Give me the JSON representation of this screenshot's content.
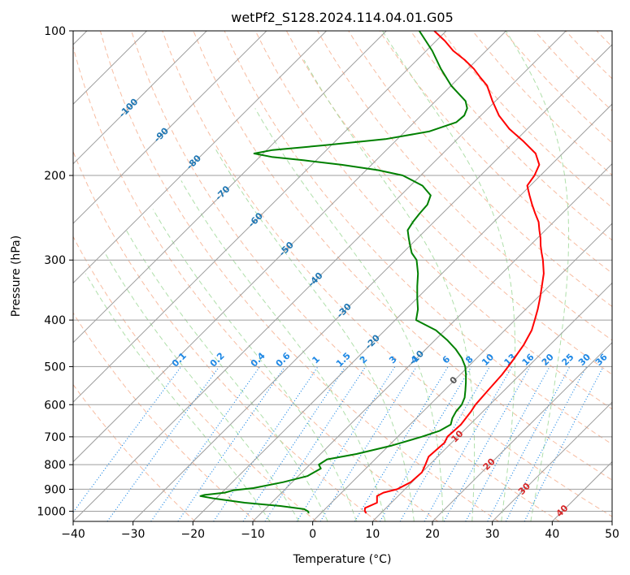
{
  "chart_data": {
    "type": "line",
    "title": "wetPf2_S128.2024.114.04.01.G05",
    "xlabel": "Temperature (°C)",
    "ylabel": "Pressure (hPa)",
    "xlim": [
      -40,
      50
    ],
    "ylim": [
      1050,
      100
    ],
    "yscale": "log",
    "skew": "skew-T",
    "grid": true,
    "xticks": [
      -40,
      -30,
      -20,
      -10,
      0,
      10,
      20,
      30,
      40,
      50
    ],
    "yticks": [
      100,
      200,
      300,
      400,
      500,
      600,
      700,
      800,
      900,
      1000
    ],
    "colors": {
      "temperature": "#ff0000",
      "dewpoint": "#008000",
      "isotherm": "#9e9e9e",
      "dry_adiabat": "#f4a582",
      "moist_adiabat": "#a1d99b",
      "mixing_ratio": "#1e88e5",
      "blue_label": "#1f77b4",
      "red_label": "#d62728"
    },
    "isotherm_labels": [
      "-100",
      "-90",
      "-80",
      "-70",
      "-60",
      "-50",
      "-40",
      "-30",
      "-20",
      "-10",
      "0",
      "10",
      "20",
      "30",
      "40"
    ],
    "mixing_ratio_labels": [
      "0.1",
      "0.2",
      "0.4",
      "0.6",
      "1",
      "1.5",
      "2",
      "3",
      "4",
      "6",
      "8",
      "10",
      "13",
      "16",
      "20",
      "25",
      "30",
      "36"
    ],
    "series": [
      {
        "key": "temperature",
        "points": [
          [
            1010,
            7.6
          ],
          [
            1000,
            7.0
          ],
          [
            985,
            6.5
          ],
          [
            960,
            7.6
          ],
          [
            930,
            6.5
          ],
          [
            915,
            7.0
          ],
          [
            900,
            8.7
          ],
          [
            870,
            9.8
          ],
          [
            830,
            10.0
          ],
          [
            800,
            9.3
          ],
          [
            770,
            8.5
          ],
          [
            720,
            8.8
          ],
          [
            700,
            8.3
          ],
          [
            660,
            8.5
          ],
          [
            620,
            8.0
          ],
          [
            600,
            7.6
          ],
          [
            560,
            7.3
          ],
          [
            520,
            7.0
          ],
          [
            490,
            6.5
          ],
          [
            450,
            5.6
          ],
          [
            420,
            4.5
          ],
          [
            400,
            3.3
          ],
          [
            380,
            2.0
          ],
          [
            360,
            0.5
          ],
          [
            340,
            -1.2
          ],
          [
            320,
            -3.0
          ],
          [
            300,
            -5.4
          ],
          [
            290,
            -6.8
          ],
          [
            280,
            -8.2
          ],
          [
            270,
            -9.5
          ],
          [
            260,
            -11.0
          ],
          [
            250,
            -12.5
          ],
          [
            240,
            -14.5
          ],
          [
            230,
            -16.5
          ],
          [
            220,
            -18.5
          ],
          [
            210,
            -20.5
          ],
          [
            200,
            -21.0
          ],
          [
            190,
            -22.0
          ],
          [
            180,
            -24.5
          ],
          [
            170,
            -28.5
          ],
          [
            160,
            -33.0
          ],
          [
            150,
            -37.0
          ],
          [
            140,
            -40.5
          ],
          [
            130,
            -44.0
          ],
          [
            125,
            -46.5
          ],
          [
            120,
            -49.0
          ],
          [
            115,
            -52.0
          ],
          [
            110,
            -55.5
          ],
          [
            105,
            -58.5
          ],
          [
            100,
            -62.0
          ]
        ]
      },
      {
        "key": "dewpoint",
        "points": [
          [
            1010,
            -2.0
          ],
          [
            1000,
            -2.5
          ],
          [
            990,
            -3.5
          ],
          [
            975,
            -8.0
          ],
          [
            960,
            -14.5
          ],
          [
            940,
            -20.5
          ],
          [
            930,
            -23.0
          ],
          [
            925,
            -22.5
          ],
          [
            915,
            -19.5
          ],
          [
            905,
            -18.5
          ],
          [
            895,
            -15.5
          ],
          [
            870,
            -11.5
          ],
          [
            845,
            -8.5
          ],
          [
            815,
            -7.5
          ],
          [
            800,
            -8.5
          ],
          [
            780,
            -8.0
          ],
          [
            760,
            -4.0
          ],
          [
            730,
            0.5
          ],
          [
            700,
            4.0
          ],
          [
            680,
            6.0
          ],
          [
            660,
            6.8
          ],
          [
            640,
            6.0
          ],
          [
            620,
            5.5
          ],
          [
            600,
            5.3
          ],
          [
            580,
            4.6
          ],
          [
            560,
            3.5
          ],
          [
            540,
            2.3
          ],
          [
            520,
            1.0
          ],
          [
            500,
            -0.5
          ],
          [
            480,
            -2.5
          ],
          [
            460,
            -5.0
          ],
          [
            440,
            -8.0
          ],
          [
            420,
            -11.5
          ],
          [
            410,
            -14.0
          ],
          [
            400,
            -16.5
          ],
          [
            380,
            -18.0
          ],
          [
            360,
            -20.0
          ],
          [
            340,
            -22.0
          ],
          [
            320,
            -24.0
          ],
          [
            300,
            -26.5
          ],
          [
            290,
            -28.5
          ],
          [
            280,
            -30.0
          ],
          [
            270,
            -31.5
          ],
          [
            260,
            -33.0
          ],
          [
            250,
            -33.5
          ],
          [
            240,
            -33.8
          ],
          [
            230,
            -34.0
          ],
          [
            220,
            -35.0
          ],
          [
            210,
            -38.0
          ],
          [
            200,
            -43.0
          ],
          [
            195,
            -48.0
          ],
          [
            190,
            -55.0
          ],
          [
            186,
            -62.0
          ],
          [
            183,
            -68.0
          ],
          [
            180,
            -71.5
          ],
          [
            177,
            -69.0
          ],
          [
            173,
            -61.0
          ],
          [
            168,
            -52.0
          ],
          [
            162,
            -46.0
          ],
          [
            155,
            -43.0
          ],
          [
            150,
            -42.8
          ],
          [
            145,
            -43.5
          ],
          [
            140,
            -45.0
          ],
          [
            130,
            -50.0
          ],
          [
            120,
            -54.5
          ],
          [
            110,
            -59.0
          ],
          [
            100,
            -64.5
          ]
        ]
      }
    ]
  }
}
